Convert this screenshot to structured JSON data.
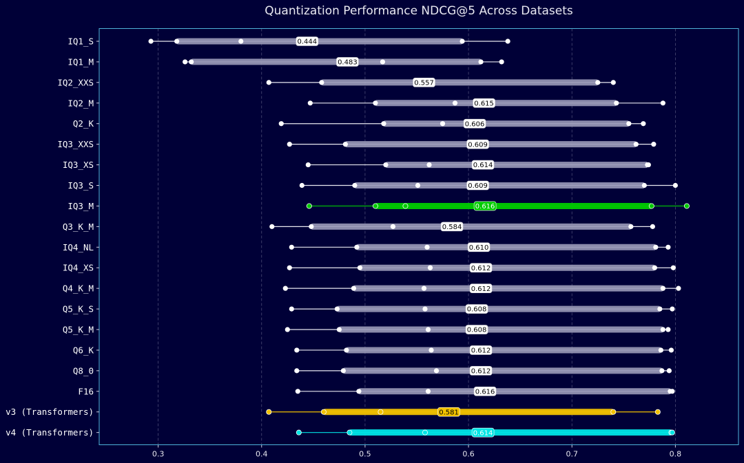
{
  "chart_data": {
    "type": "range-dot",
    "title": "Quantization Performance NDCG@5 Across Datasets",
    "xlabel": "",
    "ylabel": "",
    "xlim": [
      0.243,
      0.861
    ],
    "xticks": [
      0.3,
      0.4,
      0.5,
      0.6,
      0.7,
      0.8
    ],
    "grid": "vertical dashed",
    "colors": {
      "background": "#000037",
      "frame": "#4fb3d9",
      "default": "#ffffff",
      "default_bar": "#9a9ab8",
      "IQ3_M": "#00cc00",
      "v3 (Transformers)": "#f2c200",
      "v4 (Transformers)": "#00e5e5"
    },
    "series": [
      {
        "name": "IQ1_S",
        "min": 0.293,
        "q1": 0.318,
        "median": 0.38,
        "q3": 0.594,
        "max": 0.638,
        "mean": 0.444,
        "label": "0.444"
      },
      {
        "name": "IQ1_M",
        "min": 0.326,
        "q1": 0.332,
        "median": 0.517,
        "q3": 0.612,
        "max": 0.632,
        "mean": 0.483,
        "label": "0.483"
      },
      {
        "name": "IQ2_XXS",
        "min": 0.407,
        "q1": 0.458,
        "median": 0.557,
        "q3": 0.725,
        "max": 0.74,
        "mean": 0.557,
        "label": "0.557"
      },
      {
        "name": "IQ2_M",
        "min": 0.447,
        "q1": 0.51,
        "median": 0.587,
        "q3": 0.743,
        "max": 0.788,
        "mean": 0.615,
        "label": "0.615"
      },
      {
        "name": "Q2_K",
        "min": 0.419,
        "q1": 0.518,
        "median": 0.575,
        "q3": 0.755,
        "max": 0.769,
        "mean": 0.606,
        "label": "0.606"
      },
      {
        "name": "IQ3_XXS",
        "min": 0.427,
        "q1": 0.481,
        "median": 0.609,
        "q3": 0.762,
        "max": 0.779,
        "mean": 0.609,
        "label": "0.609"
      },
      {
        "name": "IQ3_XS",
        "min": 0.445,
        "q1": 0.52,
        "median": 0.562,
        "q3": 0.773,
        "max": 0.774,
        "mean": 0.614,
        "label": "0.614"
      },
      {
        "name": "IQ3_S",
        "min": 0.439,
        "q1": 0.49,
        "median": 0.551,
        "q3": 0.77,
        "max": 0.8,
        "mean": 0.609,
        "label": "0.609"
      },
      {
        "name": "IQ3_M",
        "min": 0.446,
        "q1": 0.51,
        "median": 0.539,
        "q3": 0.777,
        "max": 0.811,
        "mean": 0.616,
        "label": "0.616"
      },
      {
        "name": "Q3_K_M",
        "min": 0.41,
        "q1": 0.448,
        "median": 0.527,
        "q3": 0.757,
        "max": 0.778,
        "mean": 0.584,
        "label": "0.584"
      },
      {
        "name": "IQ4_NL",
        "min": 0.429,
        "q1": 0.492,
        "median": 0.56,
        "q3": 0.781,
        "max": 0.793,
        "mean": 0.61,
        "label": "0.610"
      },
      {
        "name": "IQ4_XS",
        "min": 0.427,
        "q1": 0.495,
        "median": 0.563,
        "q3": 0.78,
        "max": 0.798,
        "mean": 0.612,
        "label": "0.612"
      },
      {
        "name": "Q4_K_M",
        "min": 0.423,
        "q1": 0.489,
        "median": 0.557,
        "q3": 0.788,
        "max": 0.803,
        "mean": 0.612,
        "label": "0.612"
      },
      {
        "name": "Q5_K_S",
        "min": 0.429,
        "q1": 0.473,
        "median": 0.558,
        "q3": 0.785,
        "max": 0.797,
        "mean": 0.608,
        "label": "0.608"
      },
      {
        "name": "Q5_K_M",
        "min": 0.425,
        "q1": 0.475,
        "median": 0.561,
        "q3": 0.788,
        "max": 0.793,
        "mean": 0.608,
        "label": "0.608"
      },
      {
        "name": "Q6_K",
        "min": 0.434,
        "q1": 0.482,
        "median": 0.564,
        "q3": 0.786,
        "max": 0.796,
        "mean": 0.612,
        "label": "0.612"
      },
      {
        "name": "Q8_0",
        "min": 0.434,
        "q1": 0.479,
        "median": 0.569,
        "q3": 0.787,
        "max": 0.794,
        "mean": 0.612,
        "label": "0.612"
      },
      {
        "name": "F16",
        "min": 0.435,
        "q1": 0.494,
        "median": 0.561,
        "q3": 0.795,
        "max": 0.797,
        "mean": 0.616,
        "label": "0.616"
      },
      {
        "name": "v3 (Transformers)",
        "min": 0.407,
        "q1": 0.46,
        "median": 0.515,
        "q3": 0.74,
        "max": 0.783,
        "mean": 0.581,
        "label": "0.581"
      },
      {
        "name": "v4 (Transformers)",
        "min": 0.436,
        "q1": 0.485,
        "median": 0.558,
        "q3": 0.796,
        "max": 0.797,
        "mean": 0.614,
        "label": "0.614"
      }
    ]
  }
}
